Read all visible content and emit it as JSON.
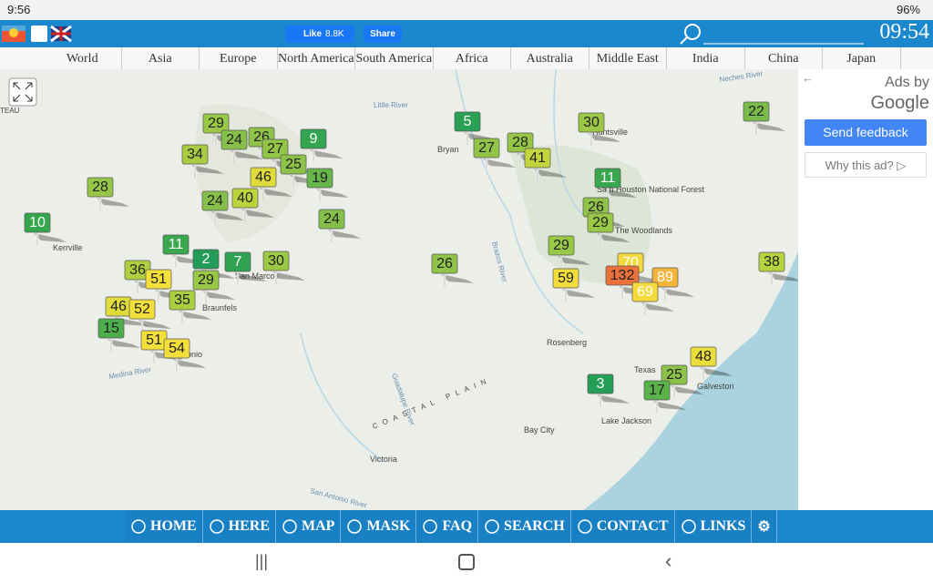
{
  "status_bar": {
    "time": "9:56",
    "battery": "96%"
  },
  "top_bar": {
    "like": "Like",
    "like_count": "8.8K",
    "share": "Share",
    "clock": "09:54"
  },
  "region_nav": [
    "World",
    "Asia",
    "Europe",
    "North America",
    "South America",
    "Africa",
    "Australia",
    "Middle East",
    "India",
    "China",
    "Japan"
  ],
  "map": {
    "markers": [
      29,
      26,
      9,
      24,
      27,
      34,
      25,
      46,
      19,
      40,
      28,
      24,
      24,
      10,
      11,
      2,
      7,
      30,
      36,
      51,
      29,
      35,
      46,
      52,
      15,
      51,
      54,
      5,
      27,
      28,
      41,
      30,
      22,
      11,
      26,
      29,
      29,
      26,
      59,
      70,
      132,
      89,
      69,
      38,
      3,
      48,
      25,
      17
    ],
    "places": [
      "Kerrville",
      "San Marcos",
      "Braunfels",
      "onio",
      "Bryan",
      "Huntsville",
      "Sam Houston National Forest",
      "The Woodlands",
      "Rosenberg",
      "Texas",
      "Galveston",
      "Lake Jackson",
      "Bay City",
      "Victoria",
      "COASTAL PLAIN",
      "Little River",
      "Brazos River",
      "Neches River",
      "Guadalupe River",
      "San Antonio River",
      "Medina River",
      "TEAU"
    ]
  },
  "ad_panel": {
    "ads_by": "Ads by",
    "google": "Google",
    "send_feedback": "Send feedback",
    "why": "Why this ad?"
  },
  "bottom_nav": [
    "HOME",
    "HERE",
    "MAP",
    "MASK",
    "FAQ",
    "SEARCH",
    "CONTACT",
    "LINKS"
  ]
}
